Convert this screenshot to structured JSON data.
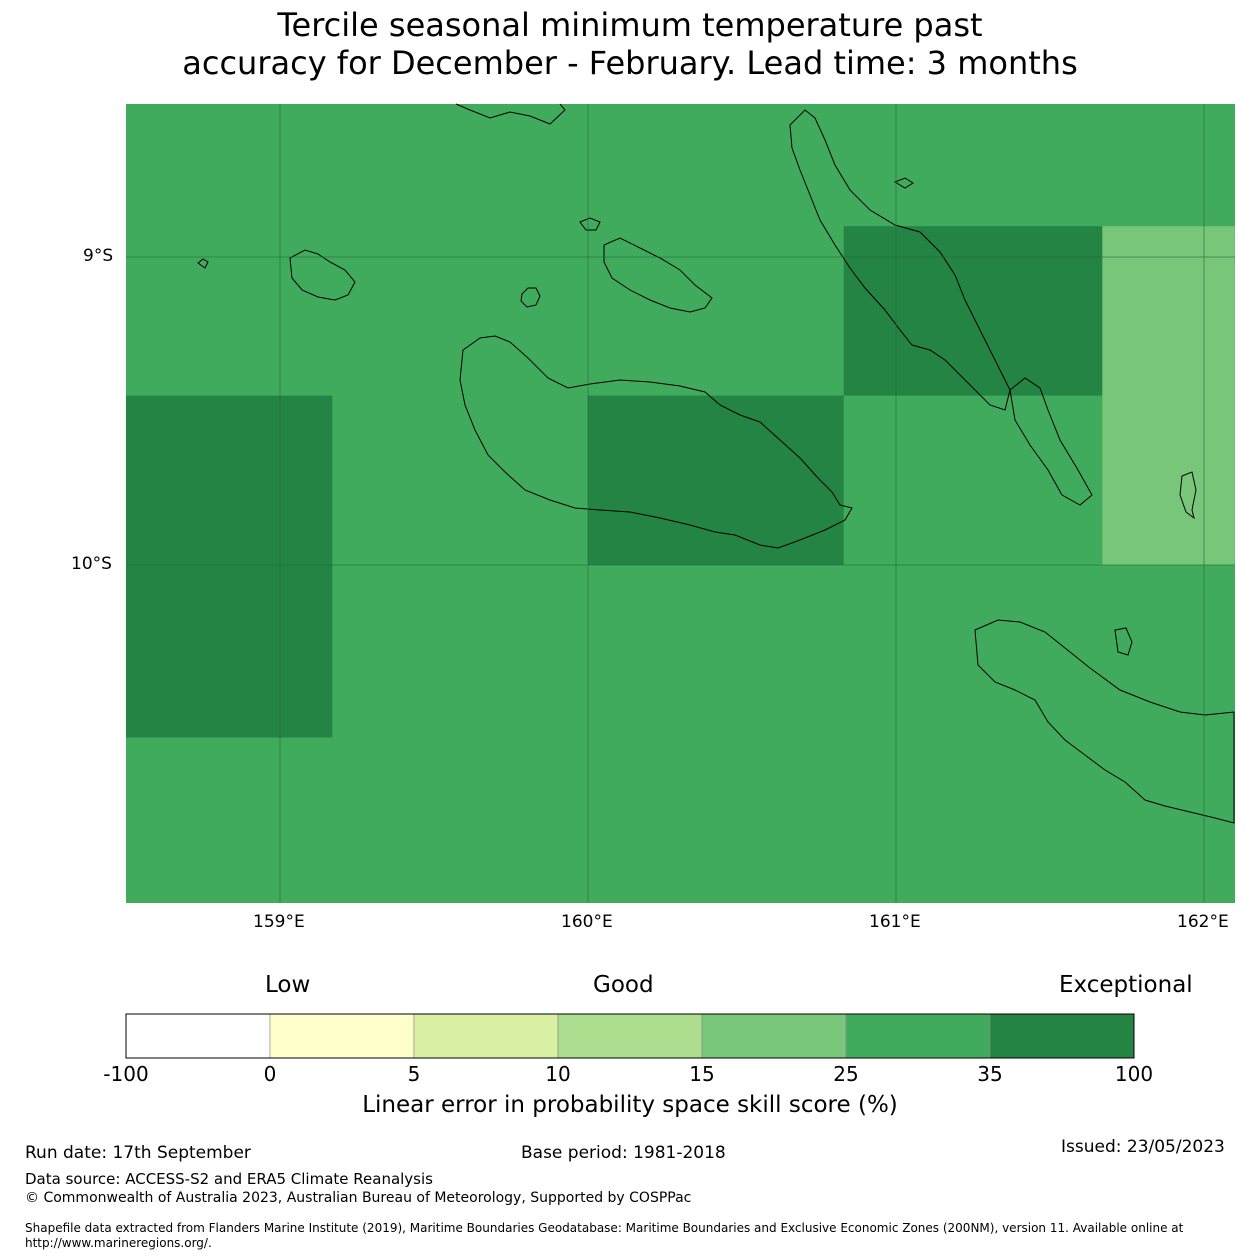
{
  "title": {
    "line1": "Tercile seasonal minimum temperature past",
    "line2": "accuracy for December - February. Lead time: 3 months"
  },
  "map": {
    "lat_ticks": [
      "9°S",
      "10°S"
    ],
    "lon_ticks": [
      "159°E",
      "160°E",
      "161°E",
      "162°E"
    ],
    "base_fill": "#41ab5d",
    "cells": [
      {
        "lon": [
          158.5,
          159.17
        ],
        "lat": [
          -9.45,
          -10.56
        ],
        "color": "#238443"
      },
      {
        "lon": [
          160.0,
          160.83
        ],
        "lat": [
          -9.45,
          -10.0
        ],
        "color": "#238443"
      },
      {
        "lon": [
          160.83,
          161.67
        ],
        "lat": [
          -8.9,
          -9.45
        ],
        "color": "#238443"
      },
      {
        "lon": [
          161.67,
          162.1
        ],
        "lat": [
          -8.9,
          -10.0
        ],
        "color": "#78c679"
      }
    ]
  },
  "legend": {
    "categories": {
      "low": "Low",
      "good": "Good",
      "exceptional": "Exceptional"
    },
    "bins": [
      {
        "color": "#ffffff"
      },
      {
        "color": "#ffffcc"
      },
      {
        "color": "#d9f0a3"
      },
      {
        "color": "#addd8e"
      },
      {
        "color": "#78c679"
      },
      {
        "color": "#41ab5d"
      },
      {
        "color": "#238443"
      }
    ],
    "ticks": [
      "-100",
      "0",
      "5",
      "10",
      "15",
      "25",
      "35",
      "100"
    ],
    "label": "Linear error in probability space skill score (%)"
  },
  "footer": {
    "run_date": "Run date: 17th September",
    "base_period": "Base period: 1981-2018",
    "issued": "Issued: 23/05/2023",
    "data_source": "Data source: ACCESS-S2 and ERA5 Climate Reanalysis",
    "copyright": "© Commonwealth of Australia 2023, Australian Bureau of Meteorology, Supported by COSPPac",
    "shapefile_line1": "Shapefile data extracted from Flanders Marine Institute (2019), Maritime Boundaries Geodatabase: Maritime Boundaries and Exclusive Economic Zones (200NM), version 11. Available online at",
    "shapefile_line2": "http://www.marineregions.org/."
  }
}
